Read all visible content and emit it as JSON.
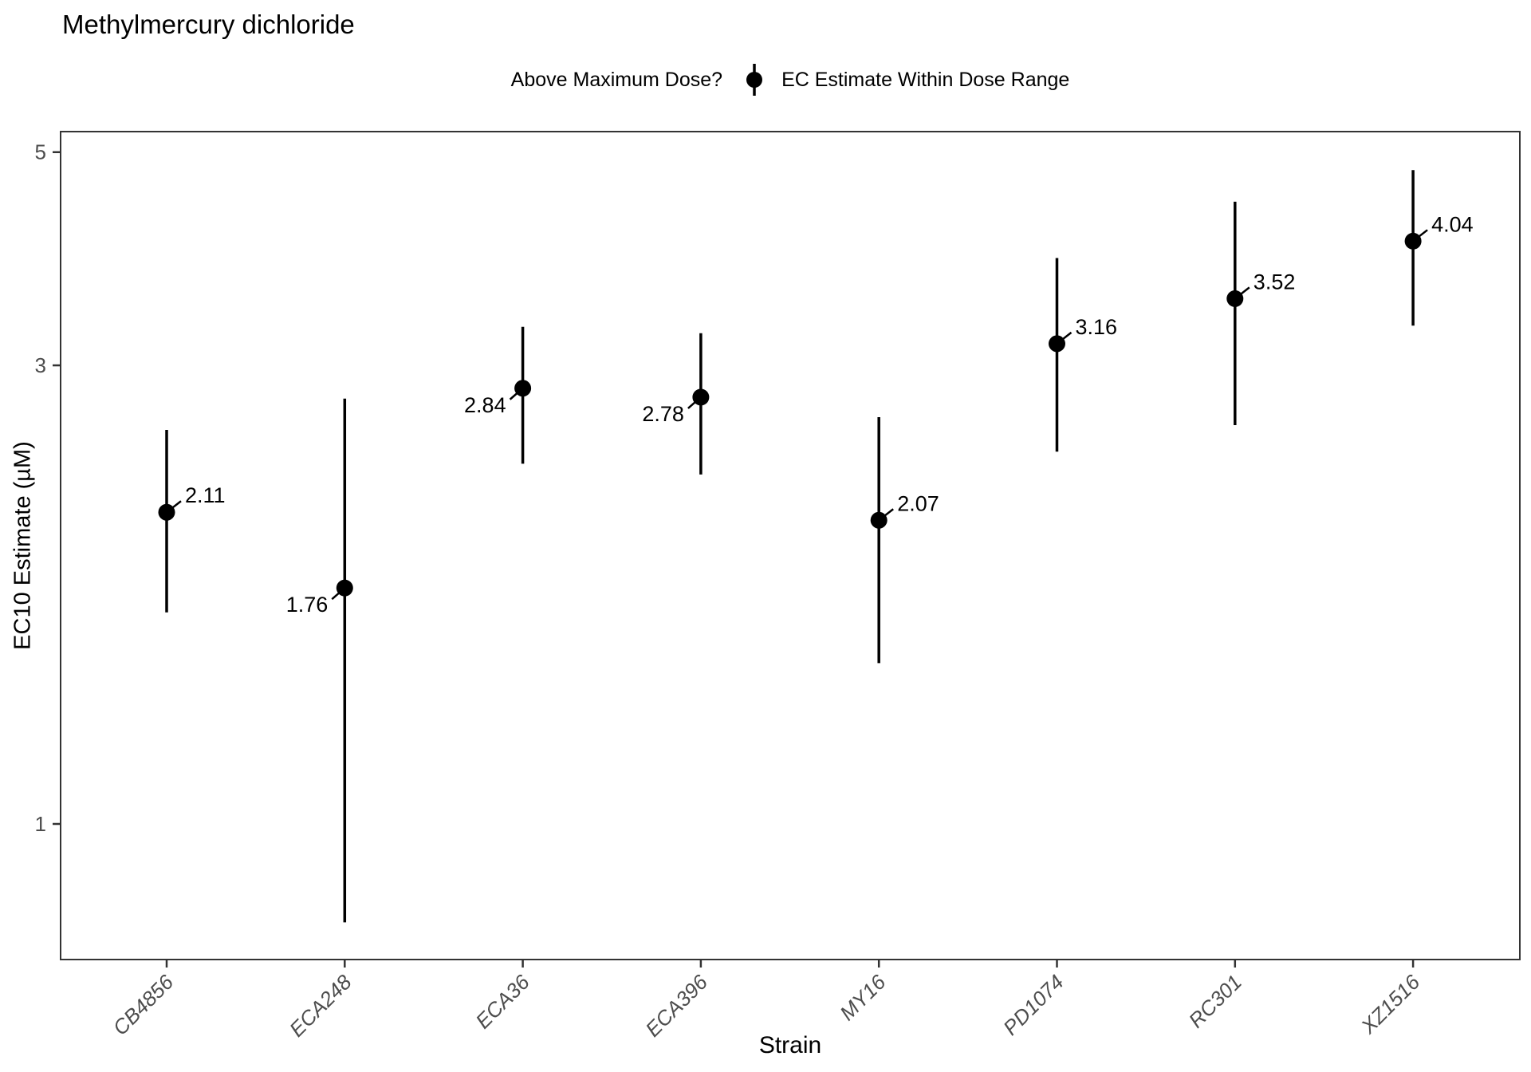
{
  "title": "Methylmercury dichloride",
  "legend": {
    "title": "Above Maximum Dose?",
    "items": [
      {
        "label": "EC Estimate Within Dose Range",
        "icon": "pointrange-icon"
      }
    ]
  },
  "x_axis": {
    "title": "Strain"
  },
  "y_axis": {
    "title": "EC10 Estimate (µM)"
  },
  "colors": {
    "point": "#000000",
    "error_bar": "#000000",
    "label_text": "#000000",
    "axis_line": "#333333",
    "tick_label": "#4D4D4D",
    "background": "#FFFFFF"
  },
  "chart_data": {
    "type": "scatter",
    "subtype": "pointrange",
    "title": "Methylmercury dichloride",
    "xlabel": "Strain",
    "ylabel": "EC10 Estimate (µM)",
    "y_scale": "log10",
    "y_ticks": [
      5,
      3,
      1
    ],
    "y_range": [
      0.72,
      5.25
    ],
    "grid": false,
    "legend_position": "top",
    "legend_title": "Above Maximum Dose?",
    "categories": [
      "CB4856",
      "ECA248",
      "ECA36",
      "ECA396",
      "MY16",
      "PD1074",
      "RC301",
      "XZ1516"
    ],
    "series": [
      {
        "name": "EC Estimate Within Dose Range",
        "points": [
          {
            "strain": "CB4856",
            "estimate": 2.11,
            "lower": 1.66,
            "upper": 2.57,
            "label": "2.11",
            "label_placement": "upper-right"
          },
          {
            "strain": "ECA248",
            "estimate": 1.76,
            "lower": 0.79,
            "upper": 2.77,
            "label": "1.76",
            "label_placement": "lower-left"
          },
          {
            "strain": "ECA36",
            "estimate": 2.84,
            "lower": 2.37,
            "upper": 3.29,
            "label": "2.84",
            "label_placement": "lower-left"
          },
          {
            "strain": "ECA396",
            "estimate": 2.78,
            "lower": 2.31,
            "upper": 3.24,
            "label": "2.78",
            "label_placement": "lower-left"
          },
          {
            "strain": "MY16",
            "estimate": 2.07,
            "lower": 1.47,
            "upper": 2.65,
            "label": "2.07",
            "label_placement": "upper-right"
          },
          {
            "strain": "PD1074",
            "estimate": 3.16,
            "lower": 2.44,
            "upper": 3.88,
            "label": "3.16",
            "label_placement": "upper-right"
          },
          {
            "strain": "RC301",
            "estimate": 3.52,
            "lower": 2.6,
            "upper": 4.44,
            "label": "3.52",
            "label_placement": "upper-right"
          },
          {
            "strain": "XZ1516",
            "estimate": 4.04,
            "lower": 3.3,
            "upper": 4.79,
            "label": "4.04",
            "label_placement": "upper-right"
          }
        ]
      }
    ]
  }
}
